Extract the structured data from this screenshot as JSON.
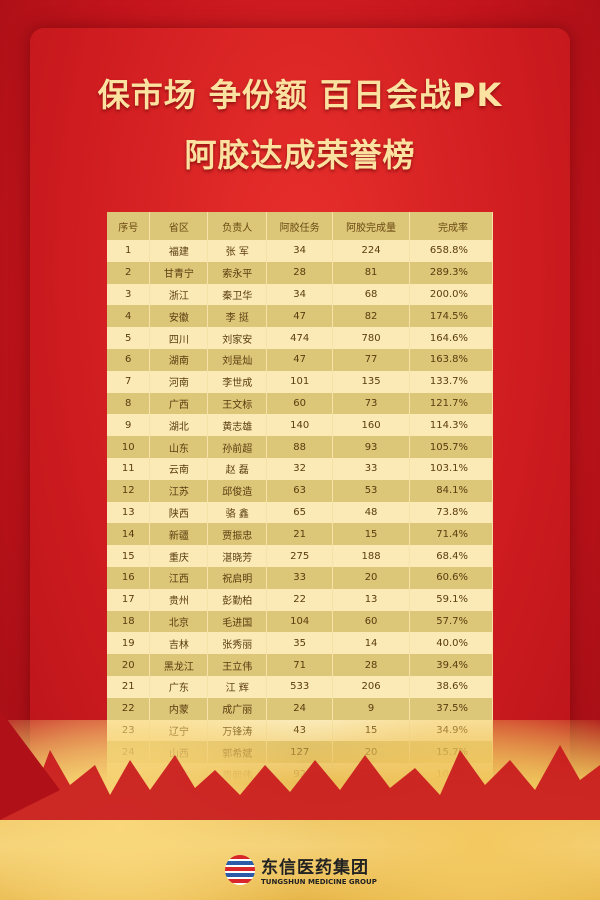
{
  "title": {
    "line1": "保市场 争份额 百日会战PK",
    "line2": "阿胶达成荣誉榜"
  },
  "table": {
    "headers": [
      "序号",
      "省区",
      "负责人",
      "阿胶任务",
      "阿胶完成量",
      "完成率"
    ],
    "rows": [
      [
        "1",
        "福建",
        "张 军",
        "34",
        "224",
        "658.8%"
      ],
      [
        "2",
        "甘青宁",
        "索永平",
        "28",
        "81",
        "289.3%"
      ],
      [
        "3",
        "浙江",
        "秦卫华",
        "34",
        "68",
        "200.0%"
      ],
      [
        "4",
        "安徽",
        "李 挺",
        "47",
        "82",
        "174.5%"
      ],
      [
        "5",
        "四川",
        "刘家安",
        "474",
        "780",
        "164.6%"
      ],
      [
        "6",
        "湖南",
        "刘是灿",
        "47",
        "77",
        "163.8%"
      ],
      [
        "7",
        "河南",
        "李世成",
        "101",
        "135",
        "133.7%"
      ],
      [
        "8",
        "广西",
        "王文标",
        "60",
        "73",
        "121.7%"
      ],
      [
        "9",
        "湖北",
        "黄志雄",
        "140",
        "160",
        "114.3%"
      ],
      [
        "10",
        "山东",
        "孙前超",
        "88",
        "93",
        "105.7%"
      ],
      [
        "11",
        "云南",
        "赵 磊",
        "32",
        "33",
        "103.1%"
      ],
      [
        "12",
        "江苏",
        "邱俊造",
        "63",
        "53",
        "84.1%"
      ],
      [
        "13",
        "陕西",
        "骆 鑫",
        "65",
        "48",
        "73.8%"
      ],
      [
        "14",
        "新疆",
        "贾振忠",
        "21",
        "15",
        "71.4%"
      ],
      [
        "15",
        "重庆",
        "湛晓芳",
        "275",
        "188",
        "68.4%"
      ],
      [
        "16",
        "江西",
        "祝启明",
        "33",
        "20",
        "60.6%"
      ],
      [
        "17",
        "贵州",
        "彭勤柏",
        "22",
        "13",
        "59.1%"
      ],
      [
        "18",
        "北京",
        "毛进国",
        "104",
        "60",
        "57.7%"
      ],
      [
        "19",
        "吉林",
        "张秀丽",
        "35",
        "14",
        "40.0%"
      ],
      [
        "20",
        "黑龙江",
        "王立伟",
        "71",
        "28",
        "39.4%"
      ],
      [
        "21",
        "广东",
        "江 辉",
        "533",
        "206",
        "38.6%"
      ],
      [
        "22",
        "内蒙",
        "成广丽",
        "24",
        "9",
        "37.5%"
      ],
      [
        "23",
        "辽宁",
        "万锋涛",
        "43",
        "15",
        "34.9%"
      ],
      [
        "24",
        "山西",
        "郭希斌",
        "127",
        "20",
        "15.7%"
      ],
      [
        "25",
        "河北",
        "周朝伟",
        "92",
        "10",
        "10.9%"
      ]
    ]
  },
  "logo": {
    "cn": "东信医药集团",
    "en": "TUNGSHUN MEDICINE GROUP"
  }
}
